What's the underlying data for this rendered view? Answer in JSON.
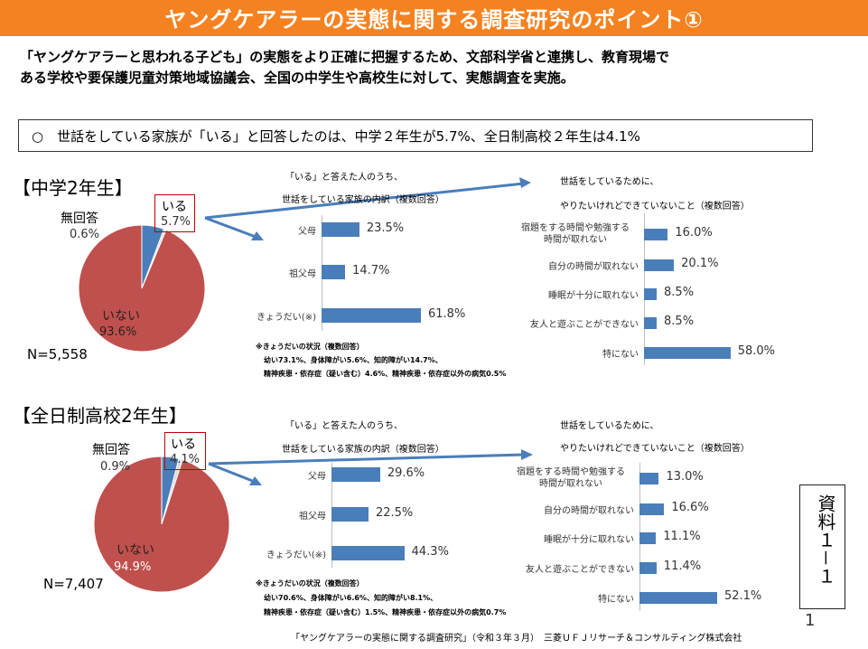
{
  "header": {
    "title": "ヤングケアラーの実態に関する調査研究のポイント①",
    "color": "#f58220"
  },
  "intro": {
    "line1": "「ヤングケアラーと思われる子ども」の実態をより正確に把握するため、文部科学省と連携し、教育現場で",
    "line2": "ある学校や要保護児童対策地域協議会、全国の中学生や高校生に対して、実態調査を実施。"
  },
  "note": "○　世話をしている家族が「いる」と回答したのは、中学２年生が5.7%、全日制高校２年生は4.1%",
  "colors": {
    "pie_none": "#c0504d",
    "pie_yes": "#4a7ebb",
    "bar": "#4a7ebb",
    "highlight_border": "#c00000"
  },
  "sections": [
    {
      "title": "【中学2年生】",
      "n": "N=5,558",
      "pie_labels": {
        "yes_label": "いる",
        "yes_value": "5.7%",
        "nr_label": "無回答",
        "nr_value": "0.6%",
        "no_label": "いない",
        "no_value": "93.6%"
      },
      "family_chart": {
        "title1": "「いる」と答えた人のうち、",
        "title2": "世話をしている家族の内訳（複数回答）"
      },
      "want_chart": {
        "title1": "世話をしているために、",
        "title2": "やりたいけれどできていないこと（複数回答）"
      },
      "footnote": {
        "title": "※きょうだいの状況（複数回答）",
        "line1": "幼い73.1%、身体障がい5.6%、知的障がい14.7%、",
        "line2": "精神疾患・依存症（疑い含む）4.6%、精神疾患・依存症以外の病気0.5%"
      }
    },
    {
      "title": "【全日制高校2年生】",
      "n": "N=7,407",
      "pie_labels": {
        "yes_label": "いる",
        "yes_value": "4.1%",
        "nr_label": "無回答",
        "nr_value": "0.9%",
        "no_label": "いない",
        "no_value": "94.9%"
      },
      "family_chart": {
        "title1": "「いる」と答えた人のうち、",
        "title2": "世話をしている家族の内訳（複数回答）"
      },
      "want_chart": {
        "title1": "世話をしているために、",
        "title2": "やりたいけれどできていないこと（複数回答）"
      },
      "footnote": {
        "title": "※きょうだいの状況（複数回答）",
        "line1": "幼い70.6%、身体障がい6.6%、知的障がい8.1%、",
        "line2": "精神疾患・依存症（疑い含む）1.5%、精神疾患・依存症以外の病気0.7%"
      }
    }
  ],
  "side_label": "資料１－１",
  "footer": {
    "source": "「ヤングケアラーの実態に関する調査研究」（令和３年３月）　三菱ＵＦＪリサーチ＆コンサルティング株式会社",
    "page": "1"
  },
  "chart_data": [
    {
      "type": "pie",
      "categories": [
        "いる",
        "無回答",
        "いない"
      ],
      "values": [
        5.7,
        0.6,
        93.6
      ]
    },
    {
      "type": "bar",
      "categories": [
        "父母",
        "祖父母",
        "きょうだい(※)"
      ],
      "values": [
        23.5,
        14.7,
        61.8
      ]
    },
    {
      "type": "bar",
      "categories": [
        "宿題をする時間や勉強する時間が取れない",
        "自分の時間が取れない",
        "睡眠が十分に取れない",
        "友人と遊ぶことができない",
        "特にない"
      ],
      "values": [
        16.0,
        20.1,
        8.5,
        8.5,
        58.0
      ]
    },
    {
      "type": "pie",
      "categories": [
        "いる",
        "無回答",
        "いない"
      ],
      "values": [
        4.1,
        0.9,
        94.9
      ]
    },
    {
      "type": "bar",
      "categories": [
        "父母",
        "祖父母",
        "きょうだい(※)"
      ],
      "values": [
        29.6,
        22.5,
        44.3
      ]
    },
    {
      "type": "bar",
      "categories": [
        "宿題をする時間や勉強する時間が取れない",
        "自分の時間が取れない",
        "睡眠が十分に取れない",
        "友人と遊ぶことができない",
        "特にない"
      ],
      "values": [
        13.0,
        16.6,
        11.1,
        11.4,
        52.1
      ]
    }
  ]
}
